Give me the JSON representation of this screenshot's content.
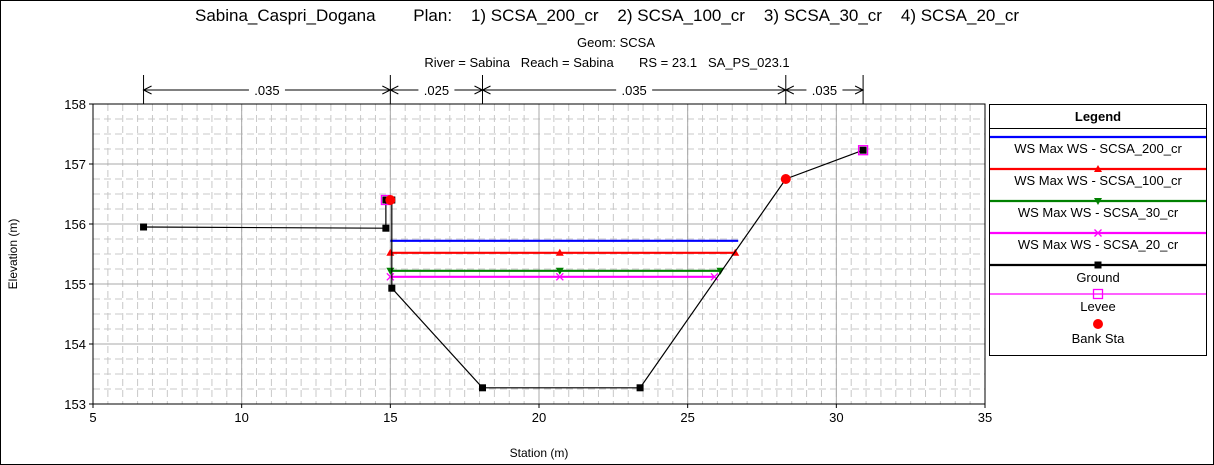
{
  "header": {
    "plan_line": "Sabina_Caspri_Dogana        Plan:    1) SCSA_200_cr    2) SCSA_100_cr    3) SCSA_30_cr    4) SCSA_20_cr",
    "geom_line": "Geom: SCSA",
    "river_line": "River = Sabina   Reach = Sabina       RS = 23.1   SA_PS_023.1"
  },
  "chart_data": {
    "type": "line",
    "xlabel": "Station (m)",
    "ylabel": "Elevation (m)",
    "xlim": [
      5,
      35
    ],
    "ylim": [
      153,
      158
    ],
    "xticks": [
      5,
      10,
      15,
      20,
      25,
      30,
      35
    ],
    "yticks": [
      153,
      154,
      155,
      156,
      157,
      158
    ],
    "grid": true,
    "legend_position": "right",
    "mannings_n": [
      {
        "label": ".035",
        "from": 6.7,
        "to": 15.0
      },
      {
        "label": ".025",
        "from": 15.0,
        "to": 18.1
      },
      {
        "label": ".035",
        "from": 18.1,
        "to": 28.3
      },
      {
        "label": ".035",
        "from": 28.3,
        "to": 30.9
      }
    ],
    "series": [
      {
        "name": "WS Max WS - SCSA_200_cr",
        "color": "#0000ff",
        "marker": "none",
        "x": [
          15.0,
          26.7
        ],
        "y": [
          155.72,
          155.72
        ]
      },
      {
        "name": "WS Max WS - SCSA_100_cr",
        "color": "#ff0000",
        "marker": "triangle-up",
        "x": [
          15.0,
          20.7,
          26.6
        ],
        "y": [
          155.52,
          155.52,
          155.52
        ]
      },
      {
        "name": "WS Max WS - SCSA_30_cr",
        "color": "#008000",
        "marker": "triangle-down",
        "x": [
          15.0,
          20.7,
          26.1
        ],
        "y": [
          155.22,
          155.22,
          155.22
        ]
      },
      {
        "name": "WS Max WS - SCSA_20_cr",
        "color": "#ff00ff",
        "marker": "x",
        "x": [
          15.0,
          20.7,
          25.9
        ],
        "y": [
          155.12,
          155.12,
          155.12
        ]
      },
      {
        "name": "Ground",
        "color": "#000000",
        "marker": "square",
        "x": [
          6.7,
          14.85,
          14.85,
          15.05,
          15.05,
          18.1,
          23.4,
          28.3,
          30.9
        ],
        "y": [
          155.95,
          155.93,
          156.4,
          156.4,
          154.93,
          153.27,
          153.27,
          156.75,
          157.23
        ]
      },
      {
        "name": "Levee",
        "color": "#ff00ff",
        "marker": "open-square",
        "x": [
          14.85,
          30.9
        ],
        "y": [
          156.4,
          157.23
        ]
      },
      {
        "name": "Bank Sta",
        "color": "#ff0000",
        "marker": "circle",
        "x": [
          15.0,
          28.3
        ],
        "y": [
          156.4,
          156.75
        ]
      }
    ]
  },
  "legend": {
    "title": "Legend",
    "items": [
      {
        "label": "WS Max WS - SCSA_200_cr",
        "color": "#0000ff",
        "marker": "none"
      },
      {
        "label": "WS Max WS - SCSA_100_cr",
        "color": "#ff0000",
        "marker": "triangle-up"
      },
      {
        "label": "WS Max WS - SCSA_30_cr",
        "color": "#008000",
        "marker": "triangle-down"
      },
      {
        "label": "WS Max WS - SCSA_20_cr",
        "color": "#ff00ff",
        "marker": "x"
      },
      {
        "label": "Ground",
        "color": "#000000",
        "marker": "square"
      },
      {
        "label": "Levee",
        "color": "#ff00ff",
        "marker": "open-square"
      },
      {
        "label": "Bank Sta",
        "color": "#ff0000",
        "marker": "circle"
      }
    ]
  }
}
